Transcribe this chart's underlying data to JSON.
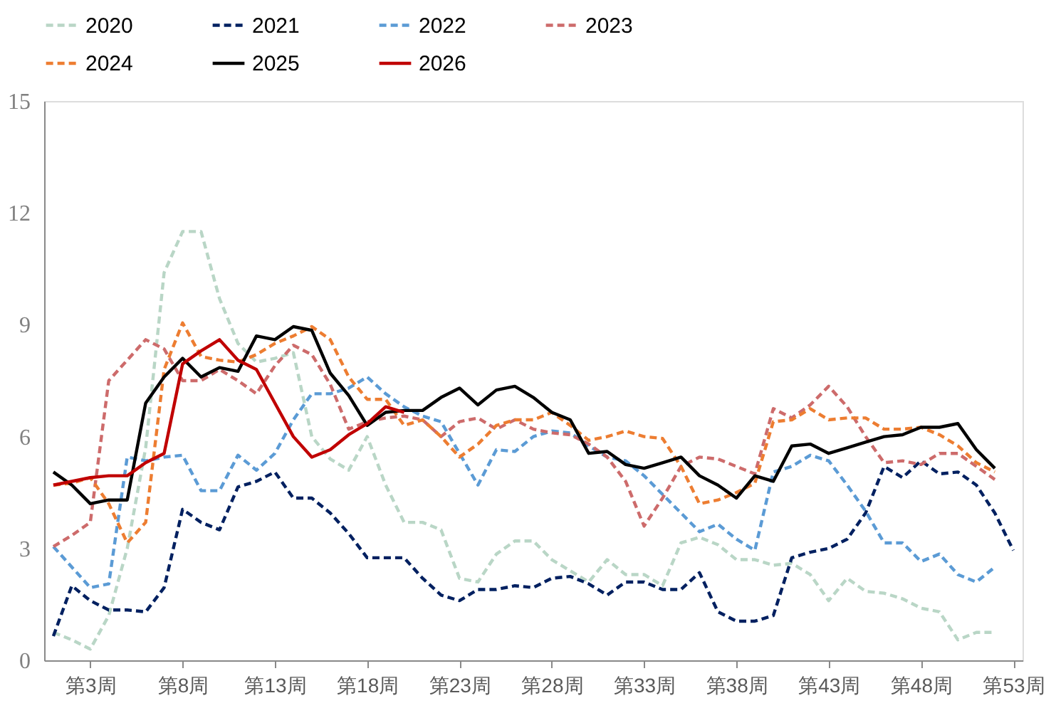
{
  "chart_data": {
    "type": "line",
    "categories": [
      null,
      null,
      "第3周",
      null,
      null,
      null,
      null,
      "第8周",
      null,
      null,
      null,
      null,
      "第13周",
      null,
      null,
      null,
      null,
      "第18周",
      null,
      null,
      null,
      null,
      "第23周",
      null,
      null,
      null,
      null,
      "第28周",
      null,
      null,
      null,
      null,
      "第33周",
      null,
      null,
      null,
      null,
      "第38周",
      null,
      null,
      null,
      null,
      "第43周",
      null,
      null,
      null,
      null,
      "第48周",
      null,
      null,
      null,
      null,
      "第53周"
    ],
    "ylim": [
      0,
      15
    ],
    "yticks": [
      0,
      3,
      6,
      9,
      12,
      15
    ],
    "grid": false,
    "legend": "top",
    "series": [
      {
        "name": "2020",
        "color": "#b9d6c6",
        "line_style": "dashed",
        "values": [
          0.75,
          0.55,
          0.3,
          1.2,
          3.0,
          5.7,
          10.4,
          11.5,
          11.5,
          9.7,
          8.5,
          8.0,
          8.1,
          8.25,
          6.0,
          5.4,
          5.1,
          6.0,
          4.7,
          3.7,
          3.7,
          3.5,
          2.2,
          2.1,
          2.85,
          3.2,
          3.2,
          2.7,
          2.4,
          2.1,
          2.7,
          2.3,
          2.3,
          2.0,
          3.15,
          3.3,
          3.1,
          2.7,
          2.7,
          2.55,
          2.6,
          2.3,
          1.6,
          2.2,
          1.85,
          1.8,
          1.65,
          1.4,
          1.3,
          0.55,
          0.75,
          0.75,
          null
        ]
      },
      {
        "name": "2021",
        "color": "#002060",
        "line_style": "dashed",
        "values": [
          0.65,
          2.0,
          1.6,
          1.35,
          1.35,
          1.3,
          1.95,
          4.05,
          3.7,
          3.5,
          4.65,
          4.8,
          5.05,
          4.35,
          4.35,
          3.95,
          3.4,
          2.75,
          2.75,
          2.75,
          2.2,
          1.75,
          1.6,
          1.9,
          1.9,
          2.0,
          1.95,
          2.2,
          2.25,
          2.05,
          1.75,
          2.1,
          2.1,
          1.9,
          1.9,
          2.35,
          1.3,
          1.05,
          1.05,
          1.2,
          2.75,
          2.9,
          3.0,
          3.25,
          3.95,
          5.2,
          4.9,
          5.35,
          5.0,
          5.05,
          4.7,
          3.95,
          2.95
        ]
      },
      {
        "name": "2022",
        "color": "#5b9bd5",
        "line_style": "dashed",
        "values": [
          3.05,
          2.5,
          1.95,
          2.05,
          5.45,
          5.35,
          5.45,
          5.5,
          4.55,
          4.55,
          5.5,
          5.1,
          5.55,
          6.45,
          7.15,
          7.15,
          7.3,
          7.6,
          7.15,
          6.8,
          6.55,
          6.4,
          5.55,
          4.7,
          5.65,
          5.6,
          6.0,
          6.15,
          6.1,
          5.75,
          5.45,
          5.35,
          4.95,
          4.45,
          3.95,
          3.45,
          3.65,
          3.25,
          2.95,
          5.05,
          5.2,
          5.5,
          5.35,
          4.7,
          4.0,
          3.15,
          3.15,
          2.65,
          2.85,
          2.3,
          2.1,
          2.5,
          null
        ]
      },
      {
        "name": "2023",
        "color": "#cd6b6b",
        "line_style": "dashed",
        "values": [
          3.05,
          3.35,
          3.7,
          7.5,
          8.05,
          8.6,
          8.35,
          7.5,
          7.5,
          7.8,
          7.5,
          7.15,
          7.9,
          8.45,
          8.2,
          7.4,
          6.2,
          6.4,
          6.5,
          6.55,
          6.45,
          6.0,
          6.4,
          6.5,
          6.2,
          6.45,
          6.2,
          6.1,
          6.05,
          5.8,
          5.45,
          4.8,
          3.6,
          4.35,
          5.2,
          5.45,
          5.4,
          5.2,
          5.0,
          6.75,
          6.5,
          6.85,
          7.35,
          6.8,
          6.0,
          5.3,
          5.35,
          5.25,
          5.55,
          5.55,
          5.2,
          4.85,
          null
        ]
      },
      {
        "name": "2024",
        "color": "#ed7d31",
        "line_style": "dashed",
        "values": [
          4.7,
          4.75,
          4.9,
          4.2,
          3.15,
          3.7,
          7.8,
          9.05,
          8.15,
          8.05,
          8.0,
          8.2,
          8.5,
          8.7,
          8.95,
          8.6,
          7.6,
          7.0,
          7.0,
          6.3,
          6.45,
          6.0,
          5.45,
          5.8,
          6.3,
          6.45,
          6.45,
          6.65,
          6.3,
          5.9,
          6.0,
          6.15,
          6.0,
          5.95,
          5.2,
          4.2,
          4.3,
          4.5,
          4.75,
          6.4,
          6.45,
          6.75,
          6.45,
          6.5,
          6.5,
          6.2,
          6.2,
          6.25,
          6.05,
          5.75,
          5.3,
          5.05,
          null
        ]
      },
      {
        "name": "2025",
        "color": "#000000",
        "line_style": "solid",
        "values": [
          5.05,
          4.7,
          4.2,
          4.3,
          4.3,
          6.9,
          7.6,
          8.1,
          7.6,
          7.85,
          7.75,
          8.7,
          8.6,
          8.95,
          8.85,
          7.7,
          7.1,
          6.3,
          6.65,
          6.7,
          6.7,
          7.05,
          7.3,
          6.85,
          7.25,
          7.35,
          7.05,
          6.65,
          6.45,
          5.55,
          5.6,
          5.25,
          5.15,
          5.3,
          5.45,
          4.95,
          4.7,
          4.35,
          4.95,
          4.8,
          5.75,
          5.8,
          5.55,
          5.7,
          5.85,
          6.0,
          6.05,
          6.25,
          6.25,
          6.35,
          5.65,
          5.15,
          null
        ]
      },
      {
        "name": "2026",
        "color": "#c00000",
        "line_style": "solid",
        "values": [
          4.7,
          4.8,
          4.9,
          4.95,
          4.95,
          5.3,
          5.55,
          7.95,
          8.3,
          8.6,
          8.05,
          7.8,
          6.9,
          6.0,
          5.45,
          5.65,
          6.05,
          6.35,
          6.8,
          6.65,
          null,
          null,
          null,
          null,
          null,
          null,
          null,
          null,
          null,
          null,
          null,
          null,
          null,
          null,
          null,
          null,
          null,
          null,
          null,
          null,
          null,
          null,
          null,
          null,
          null,
          null,
          null,
          null,
          null,
          null,
          null,
          null,
          null
        ]
      }
    ]
  }
}
